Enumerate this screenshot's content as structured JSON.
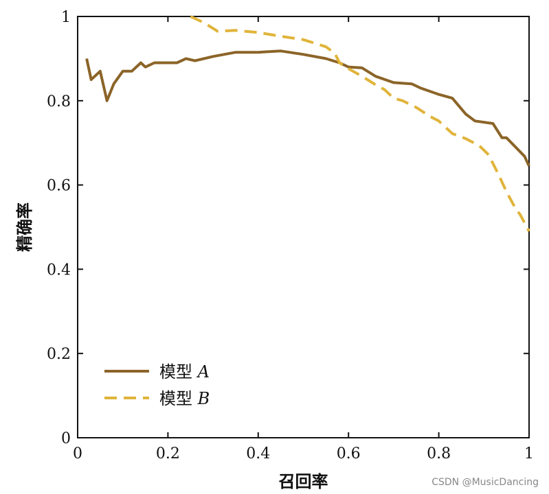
{
  "chart_data": {
    "type": "line",
    "xlabel": "召回率",
    "ylabel": "精确率",
    "xlim": [
      0,
      1
    ],
    "ylim": [
      0,
      1
    ],
    "x_ticks": [
      "0",
      "0.2",
      "0.4",
      "0.6",
      "0.8",
      "1"
    ],
    "y_ticks": [
      "0",
      "0.2",
      "0.4",
      "0.6",
      "0.8",
      "1"
    ],
    "grid": false,
    "legend_position": "bottom-left",
    "series": [
      {
        "name_prefix": "模型",
        "name_suffix": "A",
        "color": "#8B6428",
        "style": "solid",
        "points": [
          [
            0.02,
            0.9
          ],
          [
            0.03,
            0.85
          ],
          [
            0.05,
            0.87
          ],
          [
            0.065,
            0.8
          ],
          [
            0.08,
            0.84
          ],
          [
            0.1,
            0.87
          ],
          [
            0.12,
            0.87
          ],
          [
            0.14,
            0.89
          ],
          [
            0.15,
            0.88
          ],
          [
            0.17,
            0.89
          ],
          [
            0.2,
            0.89
          ],
          [
            0.22,
            0.89
          ],
          [
            0.24,
            0.9
          ],
          [
            0.26,
            0.895
          ],
          [
            0.3,
            0.905
          ],
          [
            0.35,
            0.915
          ],
          [
            0.4,
            0.915
          ],
          [
            0.45,
            0.918
          ],
          [
            0.5,
            0.91
          ],
          [
            0.55,
            0.9
          ],
          [
            0.58,
            0.89
          ],
          [
            0.6,
            0.88
          ],
          [
            0.63,
            0.878
          ],
          [
            0.66,
            0.858
          ],
          [
            0.7,
            0.843
          ],
          [
            0.74,
            0.84
          ],
          [
            0.76,
            0.83
          ],
          [
            0.8,
            0.815
          ],
          [
            0.83,
            0.806
          ],
          [
            0.86,
            0.768
          ],
          [
            0.88,
            0.752
          ],
          [
            0.92,
            0.746
          ],
          [
            0.94,
            0.712
          ],
          [
            0.95,
            0.712
          ],
          [
            0.97,
            0.69
          ],
          [
            0.99,
            0.668
          ],
          [
            1.0,
            0.645
          ]
        ]
      },
      {
        "name_prefix": "模型",
        "name_suffix": "B",
        "color": "#E0B43A",
        "style": "dashed",
        "points": [
          [
            0.25,
            1.0
          ],
          [
            0.28,
            0.985
          ],
          [
            0.31,
            0.965
          ],
          [
            0.35,
            0.967
          ],
          [
            0.4,
            0.962
          ],
          [
            0.45,
            0.953
          ],
          [
            0.5,
            0.945
          ],
          [
            0.55,
            0.928
          ],
          [
            0.57,
            0.912
          ],
          [
            0.58,
            0.89
          ],
          [
            0.6,
            0.876
          ],
          [
            0.63,
            0.858
          ],
          [
            0.66,
            0.838
          ],
          [
            0.68,
            0.826
          ],
          [
            0.7,
            0.806
          ],
          [
            0.72,
            0.8
          ],
          [
            0.75,
            0.784
          ],
          [
            0.78,
            0.763
          ],
          [
            0.8,
            0.752
          ],
          [
            0.83,
            0.722
          ],
          [
            0.86,
            0.71
          ],
          [
            0.89,
            0.693
          ],
          [
            0.91,
            0.672
          ],
          [
            0.93,
            0.63
          ],
          [
            0.95,
            0.584
          ],
          [
            0.97,
            0.544
          ],
          [
            0.98,
            0.53
          ],
          [
            1.0,
            0.49
          ]
        ]
      }
    ]
  },
  "watermark": "CSDN @MusicDancing"
}
